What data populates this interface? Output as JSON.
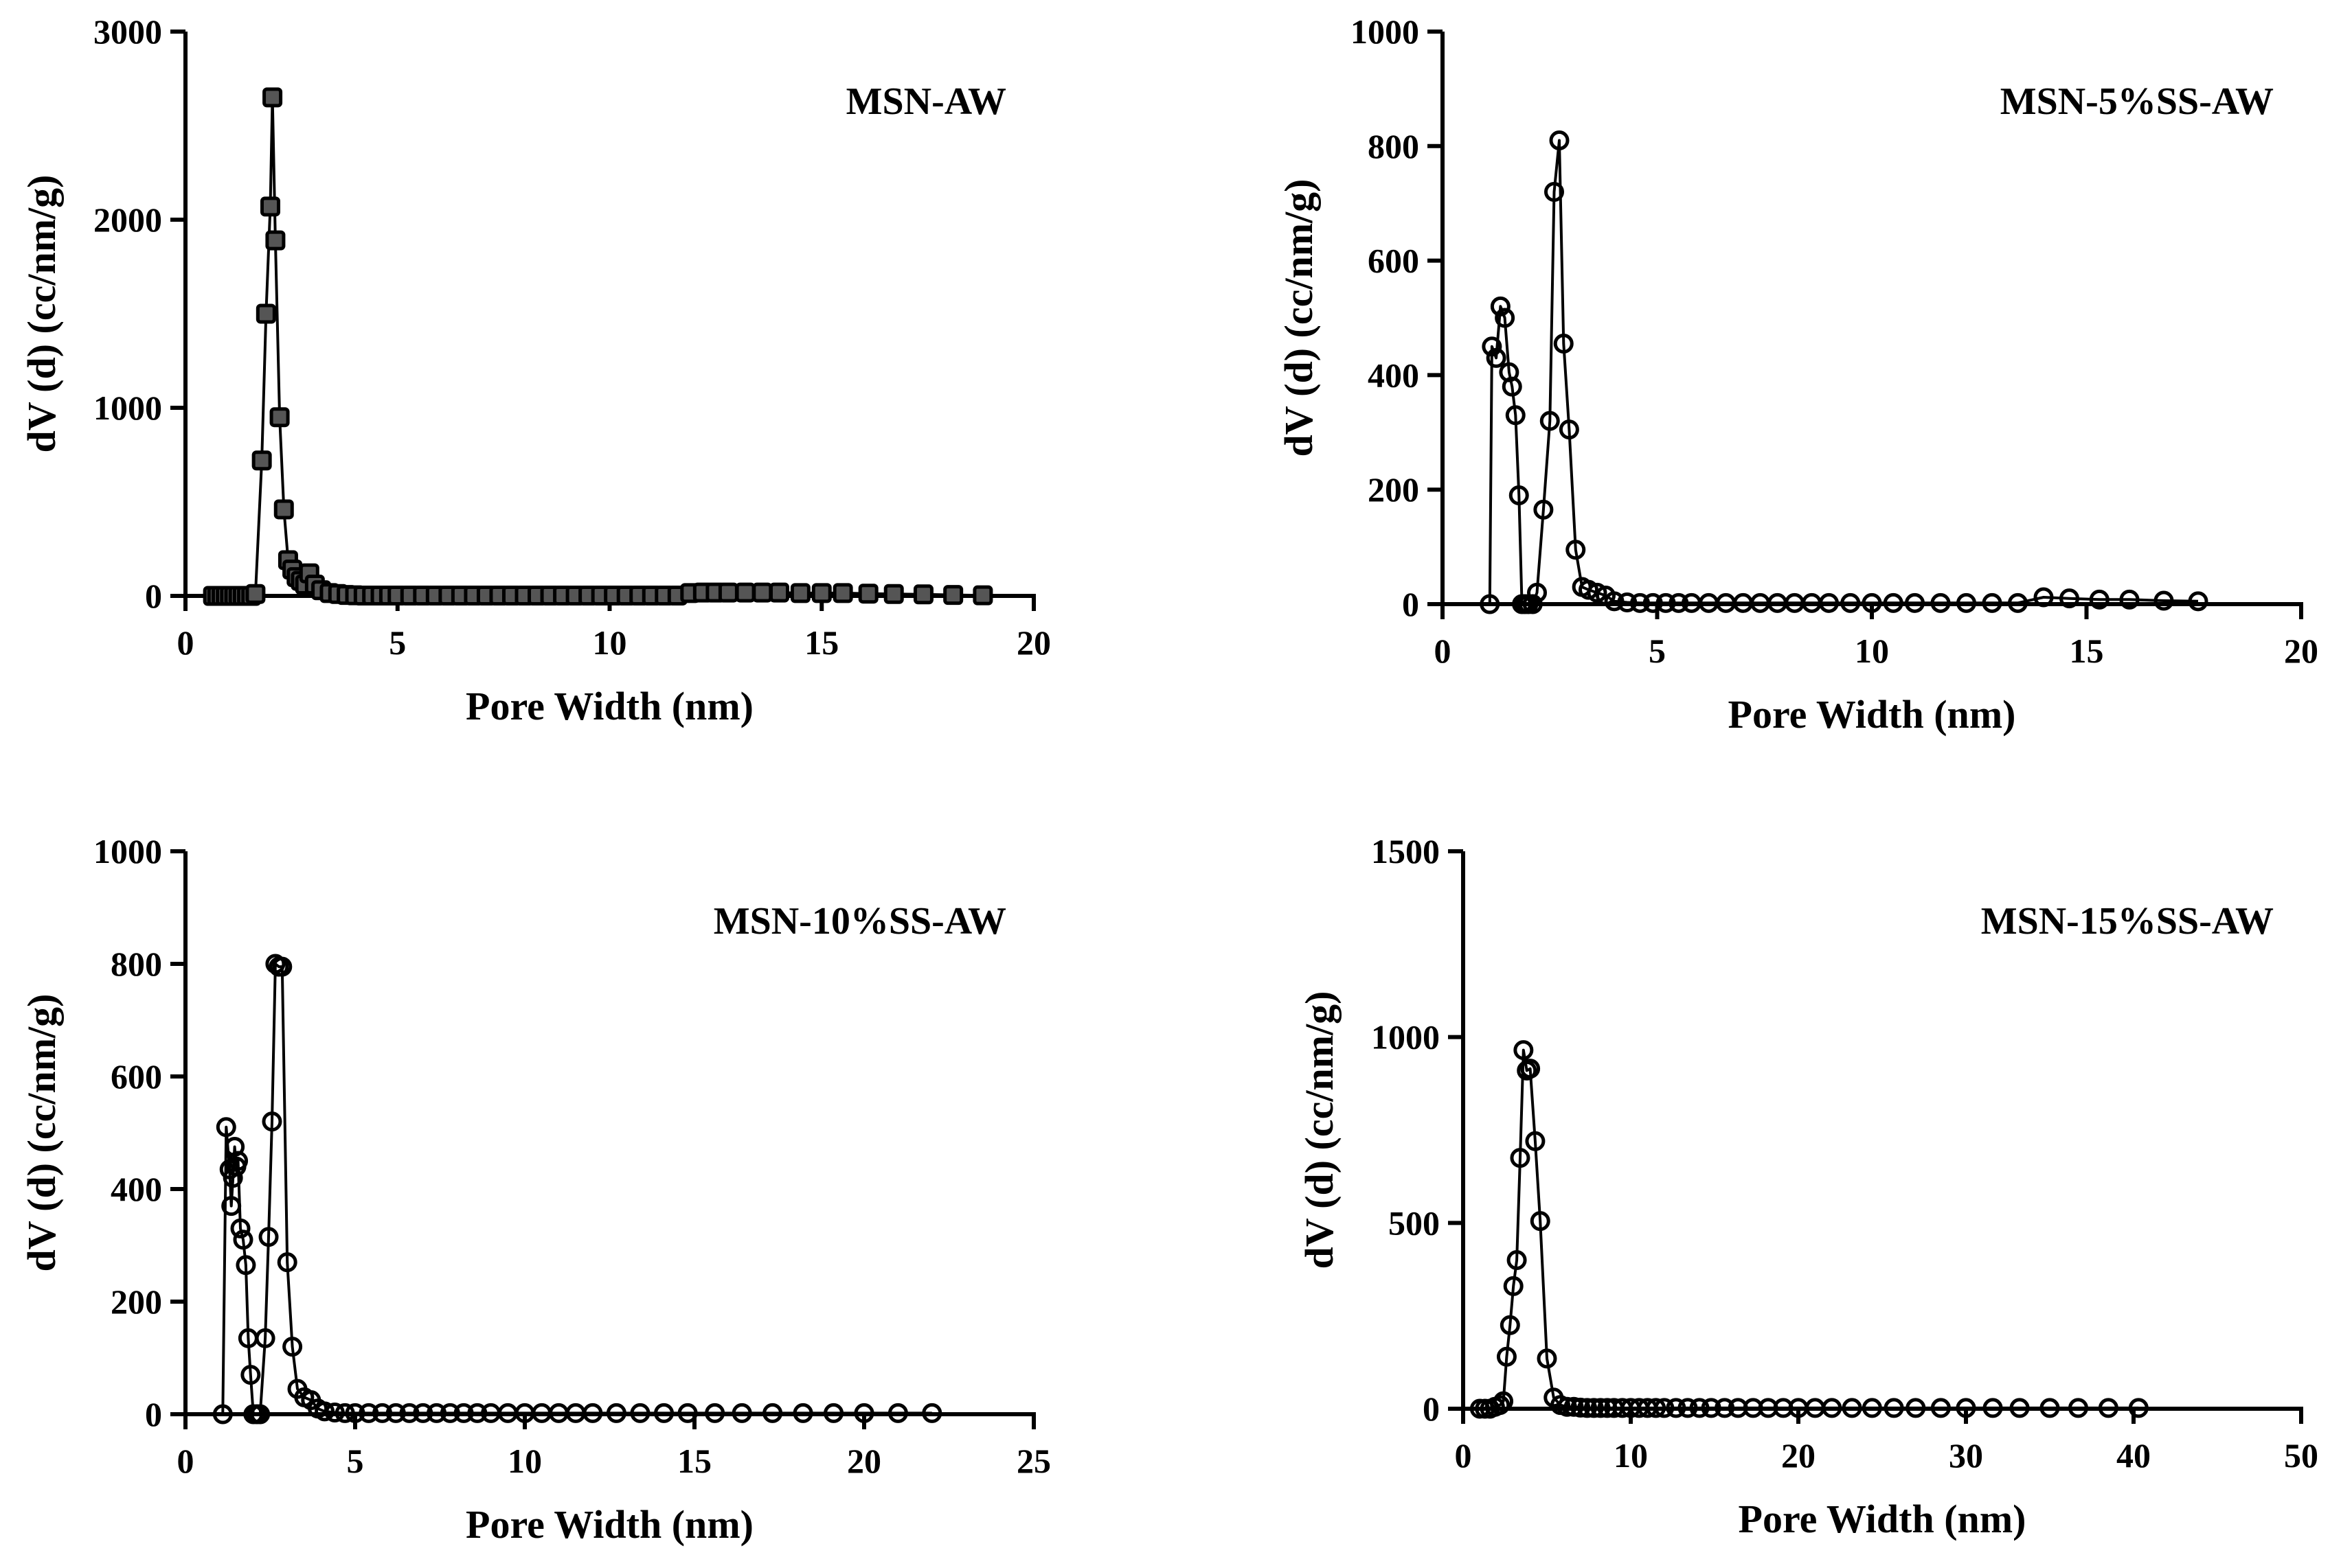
{
  "chart_data": [
    {
      "type": "line",
      "title": "MSN-AW",
      "xlabel": "Pore Width (nm)",
      "ylabel": "dV (d) (cc/nm/g)",
      "xlim": [
        0,
        20
      ],
      "ylim": [
        0,
        3000
      ],
      "xticks": [
        0,
        5,
        10,
        15,
        20
      ],
      "yticks": [
        0,
        1000,
        2000,
        3000
      ],
      "xtick_labels": [
        "0",
        "5",
        "10",
        "15",
        "20"
      ],
      "ytick_labels": [
        "0",
        "1000",
        "2000",
        "3000"
      ],
      "marker": "square-filled",
      "series": [
        {
          "name": "MSN-AW",
          "x": [
            0.65,
            0.75,
            0.85,
            0.95,
            1.05,
            1.15,
            1.25,
            1.35,
            1.45,
            1.55,
            1.65,
            1.8,
            1.9,
            2.0,
            2.05,
            2.12,
            2.22,
            2.32,
            2.42,
            2.52,
            2.62,
            2.72,
            2.82,
            2.92,
            3.05,
            3.2,
            3.4,
            3.6,
            3.8,
            4.0,
            4.2,
            4.4,
            4.6,
            4.8,
            5.0,
            5.3,
            5.6,
            5.9,
            6.2,
            6.5,
            6.8,
            7.1,
            7.4,
            7.7,
            8.0,
            8.3,
            8.6,
            8.9,
            9.2,
            9.5,
            9.8,
            10.1,
            10.4,
            10.7,
            11.0,
            11.3,
            11.6,
            11.9,
            12.2,
            12.5,
            12.8,
            13.2,
            13.6,
            14.0,
            14.5,
            15.0,
            15.5,
            16.1,
            16.7,
            17.4,
            18.1,
            18.8
          ],
          "y": [
            0,
            0,
            0,
            0,
            0,
            0,
            0,
            0,
            0,
            0,
            10,
            720,
            1500,
            2070,
            2650,
            1890,
            950,
            460,
            190,
            140,
            100,
            80,
            60,
            120,
            60,
            30,
            15,
            10,
            5,
            3,
            2,
            2,
            2,
            2,
            2,
            2,
            2,
            2,
            2,
            2,
            2,
            2,
            2,
            2,
            2,
            2,
            2,
            2,
            2,
            2,
            2,
            2,
            2,
            2,
            2,
            2,
            2,
            15,
            18,
            18,
            18,
            18,
            18,
            18,
            15,
            15,
            15,
            12,
            10,
            8,
            5,
            3
          ]
        }
      ]
    },
    {
      "type": "line",
      "title": "MSN-5%SS-AW",
      "xlabel": "Pore Width (nm)",
      "ylabel": "dV (d) (cc/nm/g)",
      "xlim": [
        0,
        20
      ],
      "ylim": [
        0,
        1000
      ],
      "xticks": [
        0,
        5,
        10,
        15,
        20
      ],
      "yticks": [
        0,
        200,
        400,
        600,
        800,
        1000
      ],
      "xtick_labels": [
        "0",
        "5",
        "10",
        "15",
        "20"
      ],
      "ytick_labels": [
        "0",
        "200",
        "400",
        "600",
        "800",
        "1000"
      ],
      "marker": "circle-open",
      "series": [
        {
          "name": "MSN-5%SS-AW",
          "x": [
            1.1,
            1.15,
            1.25,
            1.35,
            1.45,
            1.55,
            1.62,
            1.7,
            1.78,
            1.85,
            1.92,
            2.0,
            2.1,
            2.2,
            2.35,
            2.5,
            2.6,
            2.72,
            2.82,
            2.95,
            3.1,
            3.25,
            3.4,
            3.6,
            3.8,
            4.0,
            4.3,
            4.6,
            4.9,
            5.2,
            5.5,
            5.8,
            6.2,
            6.6,
            7.0,
            7.4,
            7.8,
            8.2,
            8.6,
            9.0,
            9.5,
            10.0,
            10.5,
            11.0,
            11.6,
            12.2,
            12.8,
            13.4,
            14.0,
            14.6,
            15.3,
            16.0,
            16.8,
            17.6
          ],
          "y": [
            0,
            450,
            430,
            520,
            500,
            405,
            380,
            330,
            190,
            0,
            0,
            0,
            0,
            20,
            165,
            320,
            720,
            810,
            455,
            305,
            95,
            30,
            25,
            20,
            15,
            5,
            3,
            2,
            2,
            2,
            2,
            2,
            2,
            2,
            2,
            2,
            2,
            2,
            2,
            2,
            2,
            2,
            2,
            2,
            2,
            2,
            2,
            2,
            12,
            10,
            8,
            8,
            6,
            5
          ]
        }
      ]
    },
    {
      "type": "line",
      "title": "MSN-10%SS-AW",
      "xlabel": "Pore Width (nm)",
      "ylabel": "dV (d) (cc/nm/g)",
      "xlim": [
        0,
        25
      ],
      "ylim": [
        0,
        1000
      ],
      "xticks": [
        0,
        5,
        10,
        15,
        20,
        25
      ],
      "yticks": [
        0,
        200,
        400,
        600,
        800,
        1000
      ],
      "xtick_labels": [
        "0",
        "5",
        "10",
        "15",
        "20",
        "25"
      ],
      "ytick_labels": [
        "0",
        "200",
        "400",
        "600",
        "800",
        "1000"
      ],
      "marker": "circle-open",
      "series": [
        {
          "name": "MSN-10%SS-AW",
          "x": [
            1.1,
            1.2,
            1.3,
            1.35,
            1.4,
            1.45,
            1.5,
            1.55,
            1.62,
            1.7,
            1.78,
            1.85,
            1.92,
            2.0,
            2.1,
            2.2,
            2.35,
            2.45,
            2.55,
            2.65,
            2.75,
            2.85,
            3.0,
            3.15,
            3.3,
            3.5,
            3.7,
            3.9,
            4.1,
            4.4,
            4.7,
            5.0,
            5.4,
            5.8,
            6.2,
            6.6,
            7.0,
            7.4,
            7.8,
            8.2,
            8.6,
            9.0,
            9.5,
            10.0,
            10.5,
            11.0,
            11.5,
            12.0,
            12.7,
            13.4,
            14.1,
            14.8,
            15.6,
            16.4,
            17.3,
            18.2,
            19.1,
            20.0,
            21.0,
            22.0
          ],
          "y": [
            0,
            510,
            435,
            370,
            420,
            475,
            440,
            450,
            330,
            310,
            265,
            135,
            70,
            0,
            0,
            0,
            135,
            315,
            520,
            800,
            795,
            795,
            270,
            120,
            45,
            30,
            25,
            10,
            5,
            3,
            2,
            2,
            2,
            2,
            2,
            2,
            2,
            2,
            2,
            2,
            2,
            2,
            2,
            2,
            2,
            2,
            2,
            2,
            2,
            2,
            2,
            2,
            2,
            2,
            2,
            2,
            2,
            2,
            2,
            2
          ]
        }
      ]
    },
    {
      "type": "line",
      "title": "MSN-15%SS-AW",
      "xlabel": "Pore Width (nm)",
      "ylabel": "dV (d) (cc/nm/g)",
      "xlim": [
        0,
        50
      ],
      "ylim": [
        0,
        1500
      ],
      "xticks": [
        0,
        10,
        20,
        30,
        40,
        50
      ],
      "yticks": [
        0,
        500,
        1000,
        1500
      ],
      "xtick_labels": [
        "0",
        "10",
        "20",
        "30",
        "40",
        "50"
      ],
      "ytick_labels": [
        "0",
        "500",
        "1000",
        "1500"
      ],
      "marker": "circle-open",
      "series": [
        {
          "name": "MSN-15%SS-AW",
          "x": [
            1.0,
            1.3,
            1.6,
            1.9,
            2.2,
            2.4,
            2.6,
            2.8,
            3.0,
            3.2,
            3.4,
            3.6,
            3.8,
            4.0,
            4.3,
            4.6,
            5.0,
            5.4,
            5.8,
            6.2,
            6.6,
            7.0,
            7.4,
            7.8,
            8.2,
            8.6,
            9.0,
            9.5,
            10.0,
            10.5,
            11.0,
            11.5,
            12.0,
            12.7,
            13.4,
            14.1,
            14.8,
            15.6,
            16.4,
            17.3,
            18.2,
            19.1,
            20.0,
            21.0,
            22.0,
            23.2,
            24.4,
            25.7,
            27.0,
            28.5,
            30.0,
            31.6,
            33.2,
            35.0,
            36.7,
            38.5,
            40.3
          ],
          "y": [
            0,
            0,
            0,
            5,
            10,
            20,
            140,
            225,
            330,
            400,
            675,
            965,
            910,
            915,
            720,
            505,
            135,
            30,
            10,
            5,
            5,
            3,
            2,
            2,
            2,
            2,
            2,
            2,
            2,
            2,
            2,
            2,
            2,
            2,
            2,
            2,
            2,
            2,
            2,
            2,
            2,
            2,
            2,
            2,
            2,
            2,
            2,
            2,
            2,
            2,
            2,
            2,
            2,
            2,
            2,
            2,
            2
          ]
        }
      ]
    }
  ]
}
